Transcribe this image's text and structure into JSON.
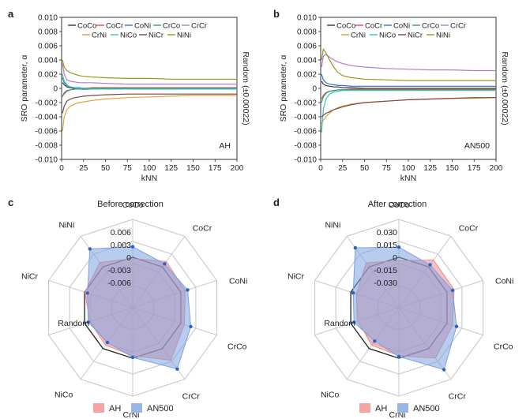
{
  "colors": {
    "CoCo": "#3a3a3a",
    "CoCr": "#e8474c",
    "CoNi": "#2d6fcf",
    "CrCo": "#2aa56b",
    "CrCr": "#b77ad4",
    "CrNi": "#d7a93a",
    "NiCo": "#36c3c0",
    "NiCr": "#7d4545",
    "NiNi": "#9a9a1f",
    "AH_fill": "#f08a8d",
    "AN500_fill": "#7ea2e0",
    "AN500_point": "#2b62c9",
    "ring": "#c9c9c9",
    "random_ring": "#222222"
  },
  "panels": {
    "a": {
      "letter": "a",
      "corner": "AH"
    },
    "b": {
      "letter": "b",
      "corner": "AN500"
    },
    "c": {
      "letter": "c",
      "title": "Before correction"
    },
    "d": {
      "letter": "d",
      "title": "After correction"
    }
  },
  "legend_pairs": [
    "CoCo",
    "CoCr",
    "CoNi",
    "CrCo",
    "CrCr",
    "CrNi",
    "NiCo",
    "NiCr",
    "NiNi"
  ],
  "radar_legend": {
    "AH": "AH",
    "AN500": "AN500"
  },
  "chart_data": [
    {
      "id": "a",
      "type": "line",
      "xlabel": "kNN",
      "ylabel": "SRO parameter, α",
      "right_label": "Random (±0.00022)",
      "xlim": [
        0,
        200
      ],
      "ylim": [
        -0.01,
        0.01
      ],
      "xticks": [
        "0",
        "25",
        "50",
        "75",
        "100",
        "125",
        "150",
        "175",
        "200"
      ],
      "yticks": [
        "-0.010",
        "-0.008",
        "-0.006",
        "-0.004",
        "-0.002",
        "0",
        "0.002",
        "0.004",
        "0.006",
        "0.008",
        "0.010"
      ],
      "x": [
        1,
        3,
        6,
        10,
        15,
        20,
        25,
        35,
        50,
        75,
        100,
        125,
        150,
        175,
        200
      ],
      "series": [
        {
          "name": "CoCo",
          "values": [
            0.0008,
            0.0005,
            0.0002,
            0.0001,
            0.0,
            -0.0001,
            -0.0001,
            -0.0001,
            -0.0001,
            -0.0001,
            -0.0001,
            -0.0001,
            -0.0001,
            -0.0001,
            -0.0001
          ]
        },
        {
          "name": "CoCr",
          "values": [
            -0.001,
            -0.0008,
            -0.0004,
            -0.0002,
            -0.0001,
            0.0,
            0.0,
            0.0001,
            0.0001,
            0.0001,
            0.0001,
            0.0001,
            0.0001,
            0.0001,
            0.0001
          ]
        },
        {
          "name": "CoNi",
          "values": [
            0.0015,
            0.0008,
            0.0004,
            0.0002,
            0.0001,
            0.0001,
            0.0,
            0.0,
            0.0,
            0.0,
            0.0,
            0.0,
            0.0,
            0.0,
            0.0
          ]
        },
        {
          "name": "CrCo",
          "values": [
            -0.0012,
            -0.0006,
            -0.0003,
            -0.0002,
            -0.0001,
            -0.0001,
            0.0,
            0.0,
            0.0,
            0.0,
            0.0,
            0.0,
            0.0,
            0.0,
            0.0
          ]
        },
        {
          "name": "CrCr",
          "values": [
            0.0035,
            0.002,
            0.0012,
            0.001,
            0.0009,
            0.0008,
            0.0008,
            0.0008,
            0.0007,
            0.0006,
            0.0006,
            0.0006,
            0.0006,
            0.0006,
            0.0006
          ]
        },
        {
          "name": "CrNi",
          "values": [
            -0.006,
            -0.004,
            -0.003,
            -0.0025,
            -0.0022,
            -0.002,
            -0.0019,
            -0.0017,
            -0.0015,
            -0.0013,
            -0.0012,
            -0.0011,
            -0.001,
            -0.001,
            -0.001
          ]
        },
        {
          "name": "NiCo",
          "values": [
            0.002,
            0.001,
            0.0005,
            0.0002,
            0.0001,
            0.0,
            0.0,
            -0.0001,
            -0.0001,
            -0.0001,
            -0.0001,
            -0.0001,
            -0.0001,
            -0.0001,
            -0.0001
          ]
        },
        {
          "name": "NiCr",
          "values": [
            -0.0035,
            -0.0025,
            -0.0018,
            -0.0015,
            -0.0013,
            -0.0012,
            -0.0011,
            -0.001,
            -0.0009,
            -0.0008,
            -0.0008,
            -0.0008,
            -0.0008,
            -0.0008,
            -0.0008
          ]
        },
        {
          "name": "NiNi",
          "values": [
            0.004,
            0.003,
            0.0025,
            0.0022,
            0.002,
            0.0018,
            0.0017,
            0.0016,
            0.0015,
            0.0014,
            0.0014,
            0.0013,
            0.0013,
            0.0013,
            0.0013
          ]
        }
      ]
    },
    {
      "id": "b",
      "type": "line",
      "xlabel": "kNN",
      "ylabel": "SRO parameter, α",
      "right_label": "Random (±0.00022)",
      "xlim": [
        0,
        200
      ],
      "ylim": [
        -0.01,
        0.01
      ],
      "xticks": [
        "0",
        "25",
        "50",
        "75",
        "100",
        "125",
        "150",
        "175",
        "200"
      ],
      "yticks": [
        "-0.010",
        "-0.008",
        "-0.006",
        "-0.004",
        "-0.002",
        "0",
        "0.002",
        "0.004",
        "0.006",
        "0.008",
        "0.010"
      ],
      "x": [
        1,
        3,
        6,
        10,
        15,
        20,
        25,
        35,
        50,
        75,
        100,
        125,
        150,
        175,
        200
      ],
      "series": [
        {
          "name": "CoCo",
          "values": [
            0.001,
            0.0006,
            0.0004,
            0.0003,
            0.0002,
            0.0002,
            0.0001,
            0.0001,
            0.0,
            0.0,
            0.0,
            0.0,
            0.0,
            0.0,
            0.0
          ]
        },
        {
          "name": "CoCr",
          "values": [
            -0.0015,
            -0.001,
            -0.0006,
            -0.0004,
            -0.0003,
            -0.0002,
            -0.0002,
            -0.0001,
            -0.0001,
            -0.0001,
            -0.0001,
            -0.0001,
            -0.0001,
            -0.0001,
            -0.0001
          ]
        },
        {
          "name": "CoNi",
          "values": [
            0.002,
            0.0012,
            0.0008,
            0.0006,
            0.0005,
            0.0004,
            0.0004,
            0.0003,
            0.0003,
            0.0003,
            0.0003,
            0.0003,
            0.0003,
            0.0003,
            0.0003
          ]
        },
        {
          "name": "CrCo",
          "values": [
            -0.002,
            -0.0012,
            -0.0007,
            -0.0004,
            -0.0003,
            -0.0002,
            -0.0002,
            -0.0002,
            -0.0002,
            -0.0002,
            -0.0002,
            -0.0002,
            -0.0002,
            -0.0002,
            -0.0002
          ]
        },
        {
          "name": "CrCr",
          "values": [
            0.003,
            0.0045,
            0.0048,
            0.0044,
            0.004,
            0.0037,
            0.0035,
            0.0032,
            0.003,
            0.0028,
            0.0027,
            0.0026,
            0.0026,
            0.0025,
            0.0025
          ]
        },
        {
          "name": "CrNi",
          "values": [
            -0.005,
            -0.0045,
            -0.004,
            -0.0035,
            -0.003,
            -0.0027,
            -0.0025,
            -0.0022,
            -0.002,
            -0.0018,
            -0.0016,
            -0.0015,
            -0.0014,
            -0.0014,
            -0.0013
          ]
        },
        {
          "name": "NiCo",
          "values": [
            -0.0062,
            -0.003,
            -0.0015,
            -0.0008,
            -0.0005,
            -0.0004,
            -0.0003,
            -0.0003,
            -0.0003,
            -0.0003,
            -0.0003,
            -0.0003,
            -0.0003,
            -0.0003,
            -0.0003
          ]
        },
        {
          "name": "NiCr",
          "values": [
            -0.004,
            -0.0038,
            -0.0035,
            -0.0033,
            -0.003,
            -0.0028,
            -0.0026,
            -0.0023,
            -0.002,
            -0.0018,
            -0.0016,
            -0.0015,
            -0.0014,
            -0.0013,
            -0.0013
          ]
        },
        {
          "name": "NiNi",
          "values": [
            0.004,
            0.0055,
            0.005,
            0.004,
            0.003,
            0.0022,
            0.0018,
            0.0015,
            0.0013,
            0.0012,
            0.0011,
            0.0011,
            0.0011,
            0.0011,
            0.0011
          ]
        }
      ]
    },
    {
      "id": "c",
      "type": "radar",
      "title": "Before correction",
      "axes": [
        "CoCo",
        "CoCr",
        "CoNi",
        "CrCo",
        "CrCr",
        "CrNi",
        "NiCo",
        "Random",
        "NiCr",
        "NiNi"
      ],
      "ring_labels": [
        "0.006",
        "0.003",
        "0",
        "-0.003",
        "-0.006"
      ],
      "range": [
        -0.012,
        0.009
      ],
      "random_ring": 0,
      "series": [
        {
          "name": "AH",
          "values": [
            -0.0003,
            0.0016,
            0.0011,
            0.0009,
            0.0034,
            -0.0006,
            -0.001,
            -0.0013,
            -0.0001,
            0.0013
          ]
        },
        {
          "name": "AN500",
          "values": [
            0.0025,
            0.0009,
            0.0017,
            0.0025,
            0.006,
            -0.0002,
            -0.0018,
            -0.0009,
            -0.0007,
            0.0053
          ]
        }
      ]
    },
    {
      "id": "d",
      "type": "radar",
      "title": "After correction",
      "axes": [
        "CoCo",
        "CoCr",
        "CoNi",
        "CrCo",
        "CrCr",
        "CrNi",
        "NiCo",
        "Random",
        "NiCr",
        "NiNi"
      ],
      "ring_labels": [
        "0.030",
        "0.015",
        "0",
        "-0.015",
        "-0.030"
      ],
      "range": [
        -0.06,
        0.045
      ],
      "random_ring": 0,
      "series": [
        {
          "name": "AH",
          "values": [
            -0.004,
            0.01,
            0.009,
            0.007,
            0.014,
            -0.003,
            -0.005,
            -0.009,
            -0.007,
            0.006
          ]
        },
        {
          "name": "AN500",
          "values": [
            0.012,
            0.003,
            0.007,
            0.012,
            0.031,
            -0.002,
            -0.011,
            -0.004,
            -0.003,
            0.028
          ]
        }
      ]
    }
  ]
}
